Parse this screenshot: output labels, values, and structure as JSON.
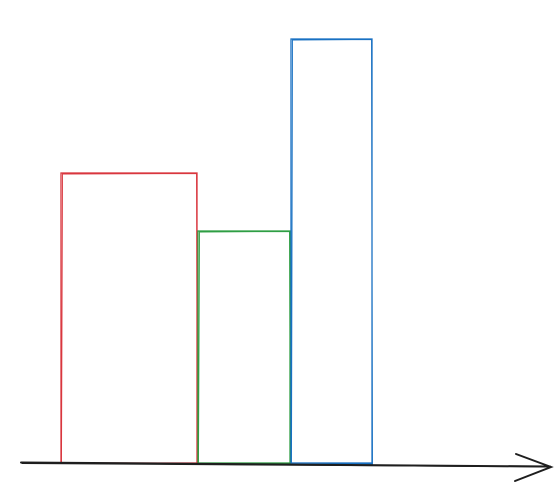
{
  "chart_data": {
    "type": "bar",
    "values": [
      290,
      232,
      424
    ],
    "colors": [
      "#d9363e",
      "#2f9e44",
      "#1971c2"
    ]
  }
}
